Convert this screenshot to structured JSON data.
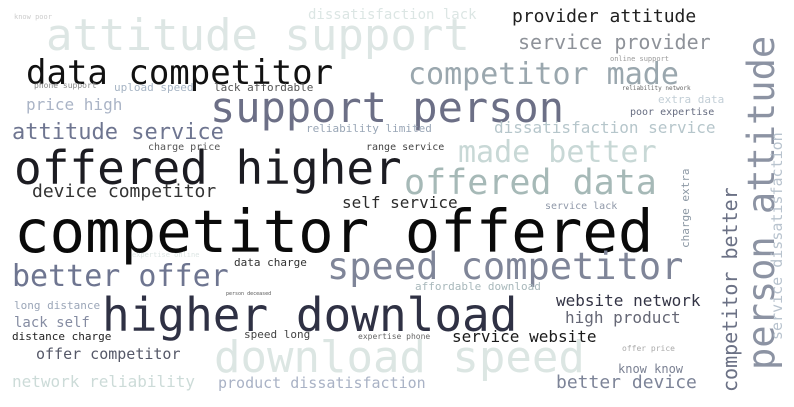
{
  "words": [
    {
      "text": "competitor offered",
      "color": "#0a0a0a"
    },
    {
      "text": "offered higher",
      "color": "#1c1c22"
    },
    {
      "text": "higher download",
      "color": "#2f3144"
    },
    {
      "text": "support person",
      "color": "#6c6f86"
    },
    {
      "text": "data competitor",
      "color": "#111111"
    },
    {
      "text": "attitude support",
      "color": "#dde6e4"
    },
    {
      "text": "download speed",
      "color": "#dce6e3"
    },
    {
      "text": "speed competitor",
      "color": "#7f8598"
    },
    {
      "text": "competitor made",
      "color": "#9aa7ae"
    },
    {
      "text": "offered data",
      "color": "#a6b9b7"
    },
    {
      "text": "made better",
      "color": "#c8d8d6"
    },
    {
      "text": "better offer",
      "color": "#6e7590"
    },
    {
      "text": "attitude service",
      "color": "#6e7590"
    },
    {
      "text": "provider attitude",
      "color": "#202020"
    },
    {
      "text": "service provider",
      "color": "#8e9299"
    },
    {
      "text": "device competitor",
      "color": "#333333"
    },
    {
      "text": "price high",
      "color": "#aab4c6"
    },
    {
      "text": "dissatisfaction service",
      "color": "#b6c6cb"
    },
    {
      "text": "self service",
      "color": "#2b2b2b"
    },
    {
      "text": "website network",
      "color": "#333445"
    },
    {
      "text": "high product",
      "color": "#656775"
    },
    {
      "text": "service website",
      "color": "#1a1a1a"
    },
    {
      "text": "better device",
      "color": "#7d8498"
    },
    {
      "text": "product dissatisfaction",
      "color": "#a9b2c5"
    },
    {
      "text": "network reliability",
      "color": "#ccdbd8"
    },
    {
      "text": "offer competitor",
      "color": "#555868"
    },
    {
      "text": "lack self",
      "color": "#858ca2"
    },
    {
      "text": "dissatisfaction lack",
      "color": "#dce6e4"
    },
    {
      "text": "lack affordable",
      "color": "#555555"
    },
    {
      "text": "upload speed",
      "color": "#a6b4c4"
    },
    {
      "text": "reliability limited",
      "color": "#99a6b6"
    },
    {
      "text": "extra data",
      "color": "#c2ced6"
    },
    {
      "text": "poor expertise",
      "color": "#666c80"
    },
    {
      "text": "charge price",
      "color": "#555555"
    },
    {
      "text": "range service",
      "color": "#444444"
    },
    {
      "text": "data charge",
      "color": "#333333"
    },
    {
      "text": "affordable download",
      "color": "#a8b8bb"
    },
    {
      "text": "long distance",
      "color": "#9ba6b8"
    },
    {
      "text": "distance charge",
      "color": "#222222"
    },
    {
      "text": "speed long",
      "color": "#444444"
    },
    {
      "text": "expertise phone",
      "color": "#666666"
    },
    {
      "text": "service lack",
      "color": "#8f98a8"
    },
    {
      "text": "know know",
      "color": "#7a8092"
    },
    {
      "text": "offer price",
      "color": "#aaaaaa"
    },
    {
      "text": "phone support",
      "color": "#888888"
    },
    {
      "text": "know poor",
      "color": "#cccccc"
    },
    {
      "text": "online support",
      "color": "#999999"
    },
    {
      "text": "reliability network",
      "color": "#666666"
    },
    {
      "text": "person deceased",
      "color": "#555555"
    },
    {
      "text": "expertise online",
      "color": "#dde6e4"
    },
    {
      "text": "person attitude",
      "color": "#8c93a3"
    },
    {
      "text": "competitor better",
      "color": "#6b7185"
    },
    {
      "text": "service dissatisfaction",
      "color": "#b8c3ce"
    },
    {
      "text": "charge extra",
      "color": "#8b97a3"
    }
  ]
}
